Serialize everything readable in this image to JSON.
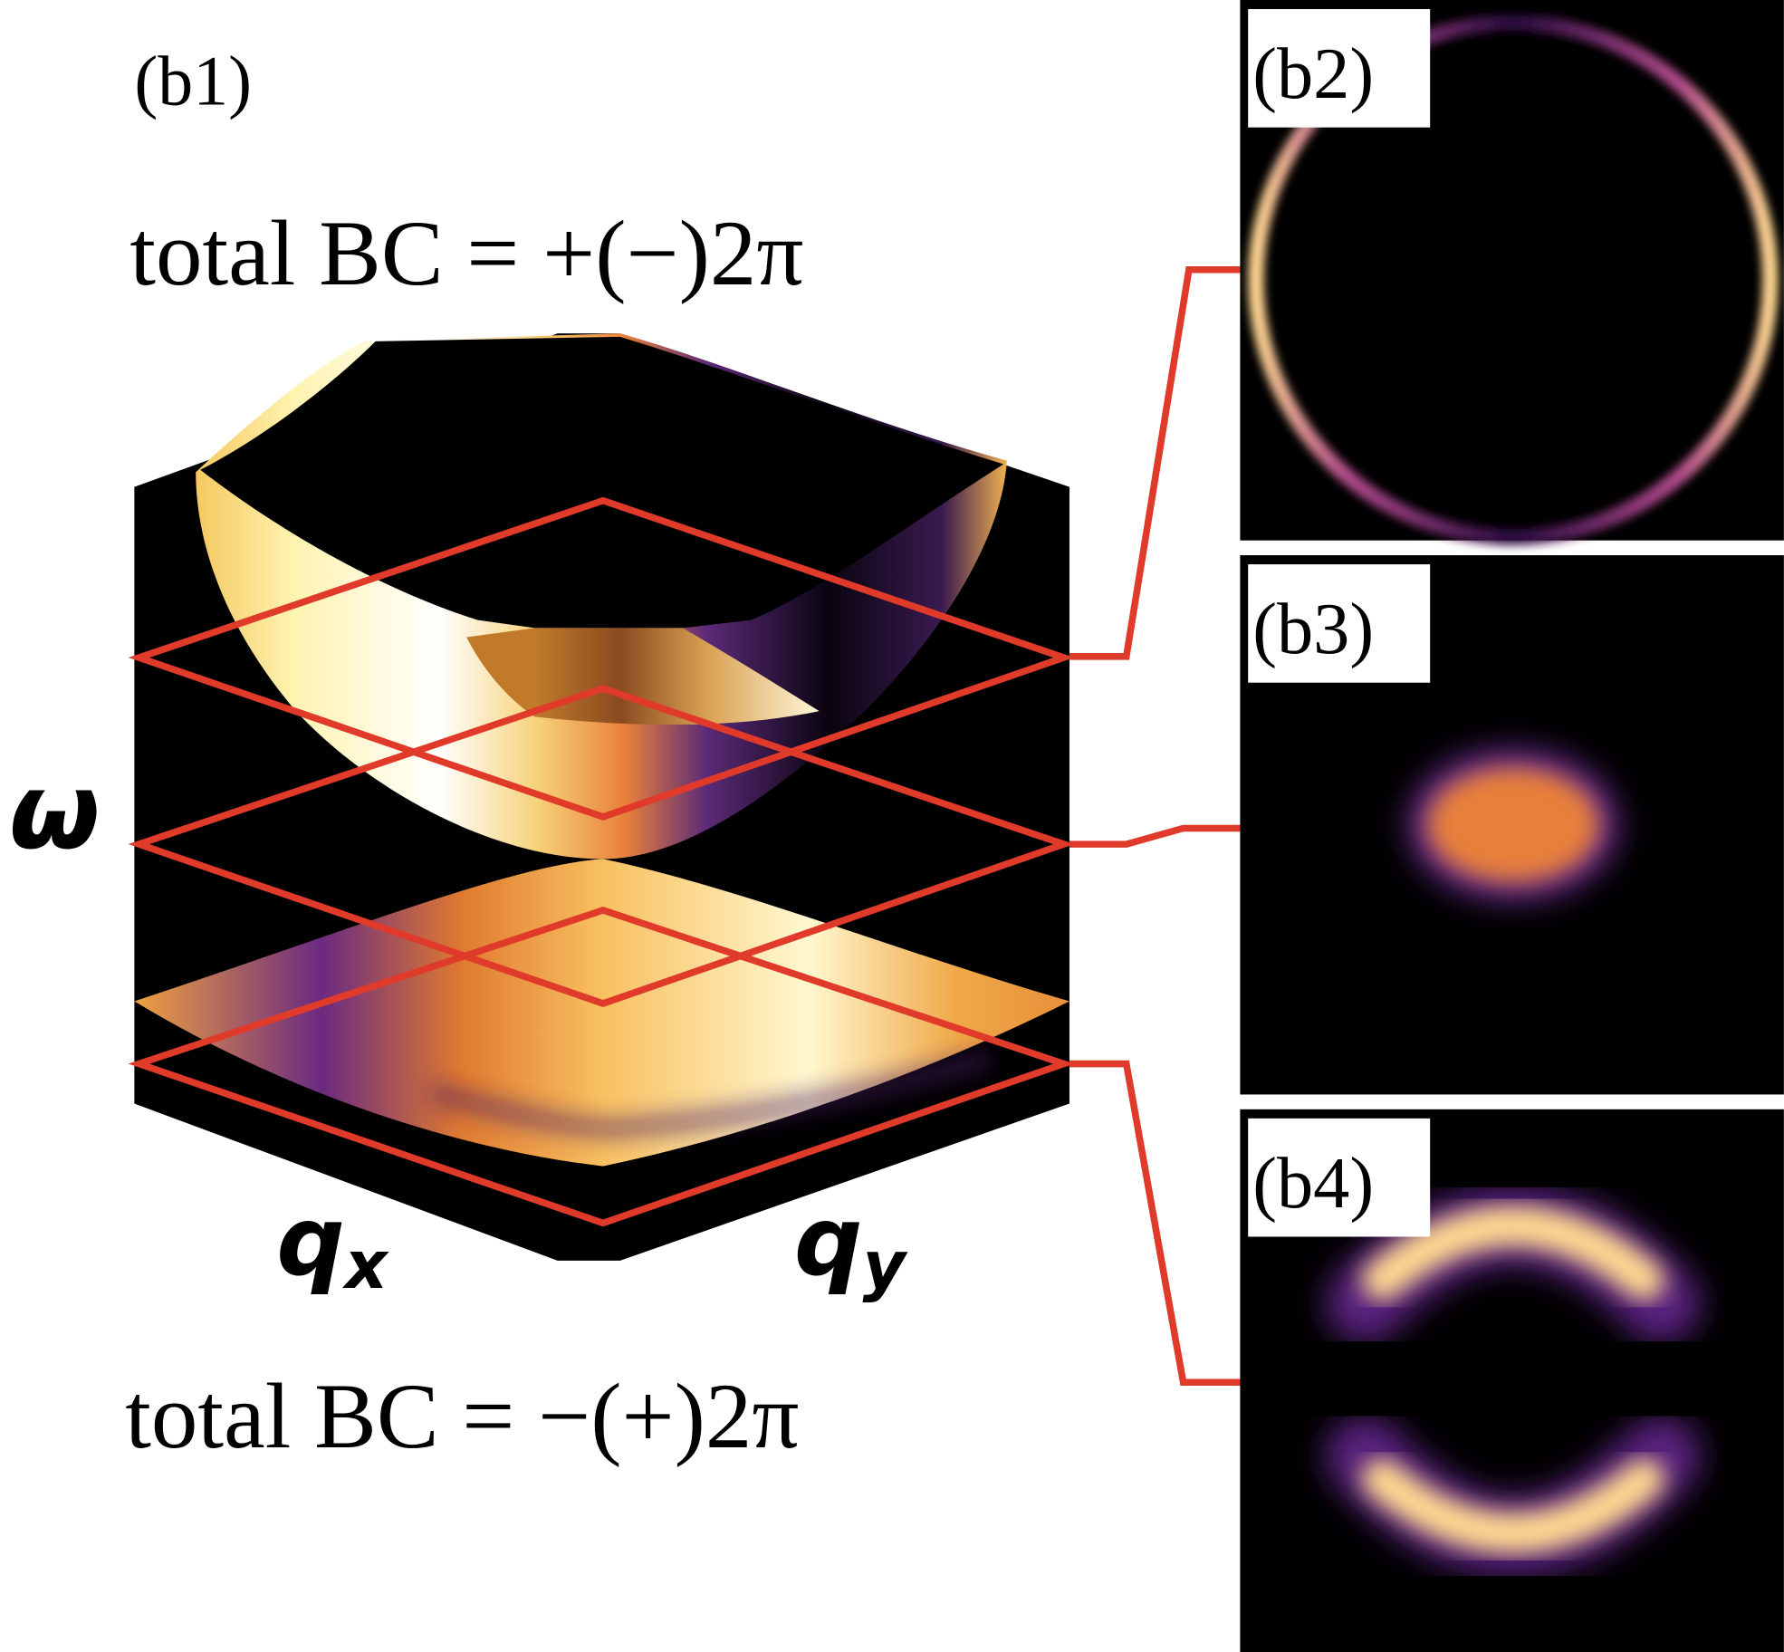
{
  "b1": {
    "label": "(b1)",
    "top_text": "total BC = +(−)2π",
    "bottom_text": "total BC = −(+)2π",
    "axis_omega": "ω",
    "axis_qx": {
      "main": "q",
      "sub": "x"
    },
    "axis_qy": {
      "main": "q",
      "sub": "y"
    }
  },
  "b2": {
    "label": "(b2)"
  },
  "b3": {
    "label": "(b3)"
  },
  "b4": {
    "label": "(b4)"
  }
}
